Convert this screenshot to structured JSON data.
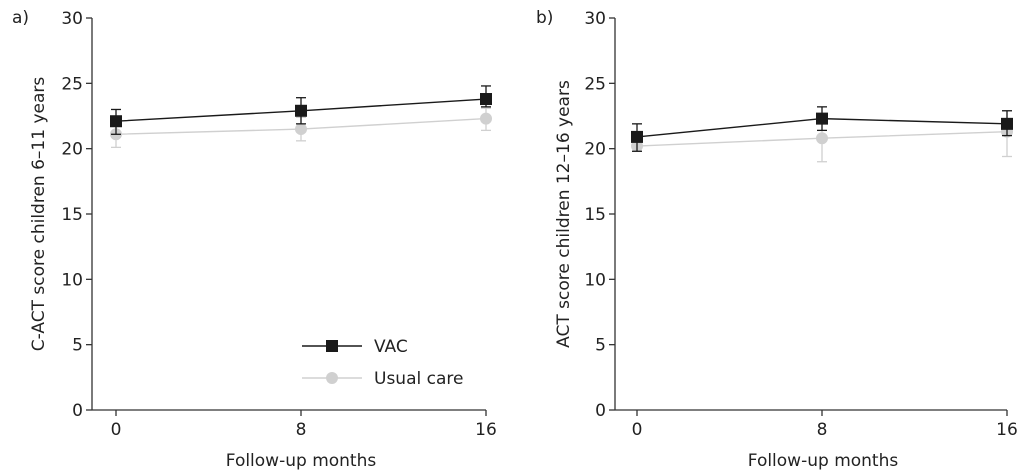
{
  "chart_data": [
    {
      "type": "line",
      "panel_label": "a)",
      "xlabel": "Follow-up months",
      "ylabel": "C-ACT score children 6–11 years",
      "x": [
        0,
        8,
        16
      ],
      "x_tick_labels": [
        "0",
        "8",
        "16"
      ],
      "ylim": [
        0,
        30
      ],
      "y_ticks": [
        0,
        5,
        10,
        15,
        20,
        25,
        30
      ],
      "y_tick_labels": [
        "0",
        "5",
        "10",
        "15",
        "20",
        "25",
        "30"
      ],
      "grid": false,
      "legend": {
        "position": "bottom-right",
        "entries": [
          "VAC",
          "Usual care"
        ]
      },
      "series": [
        {
          "name": "VAC",
          "marker": "square",
          "color": "#1a1a1a",
          "values": [
            22.1,
            22.9,
            23.8
          ],
          "error_low": [
            21.1,
            21.9,
            23.2
          ],
          "error_high": [
            23.0,
            23.9,
            24.8
          ]
        },
        {
          "name": "Usual care",
          "marker": "circle",
          "color": "#d0d0d0",
          "values": [
            21.1,
            21.5,
            22.3
          ],
          "error_low": [
            20.1,
            20.6,
            21.4
          ],
          "error_high": [
            22.0,
            22.4,
            23.1
          ]
        }
      ]
    },
    {
      "type": "line",
      "panel_label": "b)",
      "xlabel": "Follow-up months",
      "ylabel": "ACT score children 12–16 years",
      "x": [
        0,
        8,
        16
      ],
      "x_tick_labels": [
        "0",
        "8",
        "16"
      ],
      "ylim": [
        0,
        30
      ],
      "y_ticks": [
        0,
        5,
        10,
        15,
        20,
        25,
        30
      ],
      "y_tick_labels": [
        "0",
        "5",
        "10",
        "15",
        "20",
        "25",
        "30"
      ],
      "grid": false,
      "series": [
        {
          "name": "VAC",
          "marker": "square",
          "color": "#1a1a1a",
          "values": [
            20.9,
            22.3,
            21.9
          ],
          "error_low": [
            19.8,
            21.4,
            21.0
          ],
          "error_high": [
            21.9,
            23.2,
            22.9
          ]
        },
        {
          "name": "Usual care",
          "marker": "circle",
          "color": "#d0d0d0",
          "values": [
            20.2,
            20.8,
            21.3
          ],
          "error_low": [
            19.8,
            19.0,
            19.4
          ],
          "error_high": [
            20.6,
            22.5,
            22.9
          ]
        }
      ]
    }
  ]
}
